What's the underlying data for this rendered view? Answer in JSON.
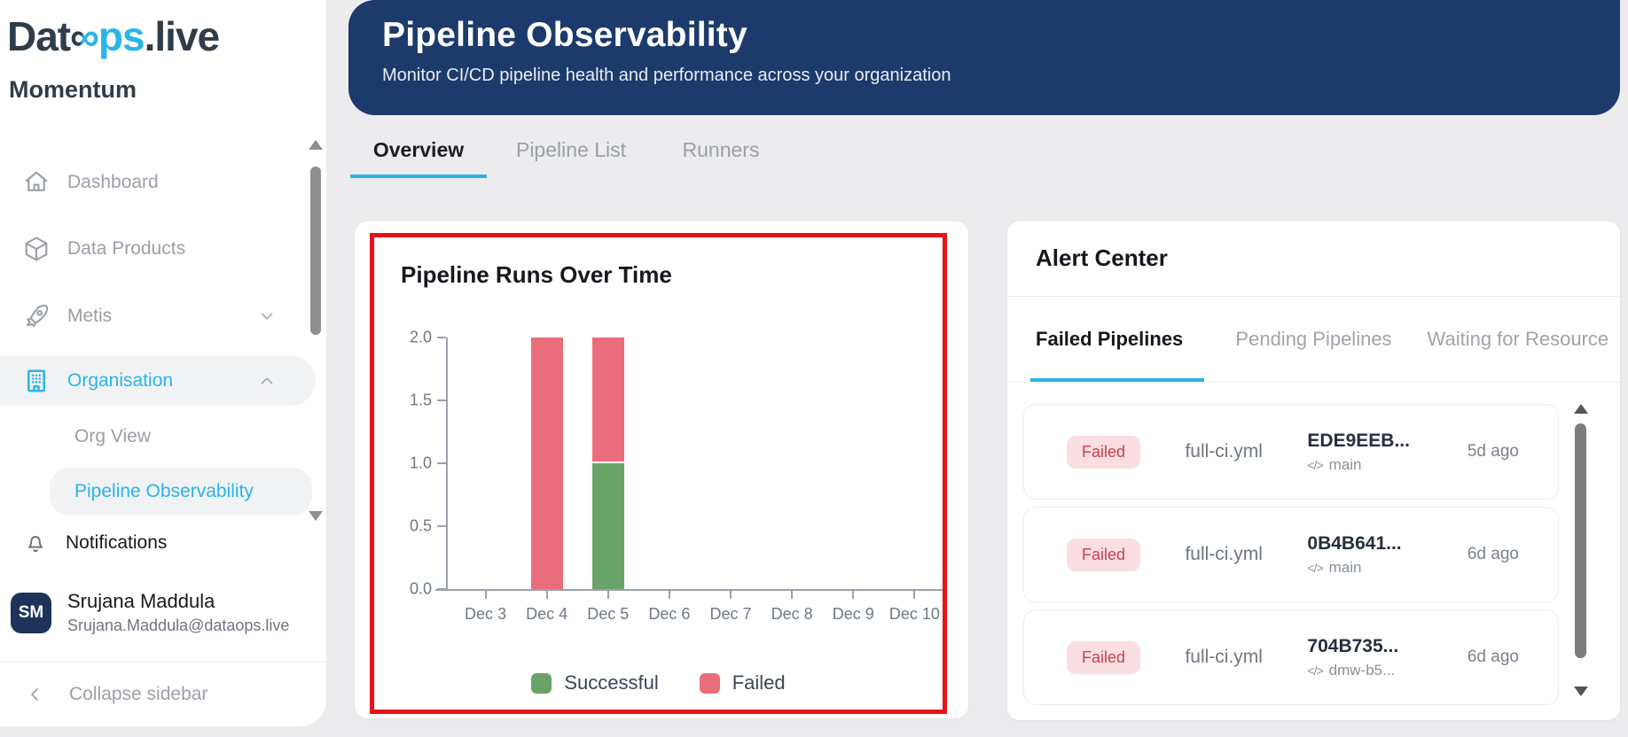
{
  "colors": {
    "brand_navy": "#1c3a6b",
    "accent_cyan": "#29b5e8",
    "success_green": "#6aa368",
    "fail_red": "#ea6d7c",
    "badge_bg": "#fbdee1",
    "badge_text": "#c9404e",
    "highlight_border_red": "#e6131b"
  },
  "sidebar": {
    "logo": {
      "part1": "Dat",
      "infinity": "∞",
      "part2": "ps",
      "part3": ".live",
      "product": "Momentum"
    },
    "items": [
      {
        "label": "Dashboard"
      },
      {
        "label": "Data Products"
      },
      {
        "label": "Metis"
      },
      {
        "label": "Organisation"
      },
      {
        "label": "Org View"
      },
      {
        "label": "Pipeline Observability"
      },
      {
        "label": "Notifications"
      }
    ],
    "user": {
      "initials": "SM",
      "name": "Srujana Maddula",
      "email": "Srujana.Maddula@dataops.live"
    },
    "collapse_label": "Collapse sidebar"
  },
  "header": {
    "title": "Pipeline Observability",
    "subtitle": "Monitor CI/CD pipeline health and performance across your organization"
  },
  "main_tabs": [
    {
      "label": "Overview",
      "active": true
    },
    {
      "label": "Pipeline List",
      "active": false
    },
    {
      "label": "Runners",
      "active": false
    }
  ],
  "chart_data": {
    "type": "bar",
    "stacked": true,
    "title": "Pipeline Runs Over Time",
    "categories": [
      "Dec 3",
      "Dec 4",
      "Dec 5",
      "Dec 6",
      "Dec 7",
      "Dec 8",
      "Dec 9",
      "Dec 10"
    ],
    "series": [
      {
        "name": "Successful",
        "color": "#6aa368",
        "values": [
          0,
          0,
          1,
          0,
          0,
          0,
          0,
          0
        ]
      },
      {
        "name": "Failed",
        "color": "#ea6d7c",
        "values": [
          0,
          2,
          1,
          0,
          0,
          0,
          0,
          0
        ]
      }
    ],
    "ylim": [
      0,
      2
    ],
    "ytick_labels": [
      "0.0",
      "0.5",
      "1.0",
      "1.5",
      "2.0"
    ],
    "grid": false,
    "legend_position": "bottom"
  },
  "alert_center": {
    "title": "Alert Center",
    "tabs": [
      {
        "label": "Failed Pipelines",
        "active": true
      },
      {
        "label": "Pending Pipelines",
        "active": false
      },
      {
        "label": "Waiting for Resource",
        "active": false
      }
    ],
    "rows": [
      {
        "status": "Failed",
        "pipeline": "full-ci.yml",
        "commit": "EDE9EEB...",
        "branch": "main",
        "time": "5d ago",
        "code_glyph": "</>"
      },
      {
        "status": "Failed",
        "pipeline": "full-ci.yml",
        "commit": "0B4B641...",
        "branch": "main",
        "time": "6d ago",
        "code_glyph": "</>"
      },
      {
        "status": "Failed",
        "pipeline": "full-ci.yml",
        "commit": "704B735...",
        "branch": "dmw-b5...",
        "time": "6d ago",
        "code_glyph": "</>"
      }
    ]
  }
}
